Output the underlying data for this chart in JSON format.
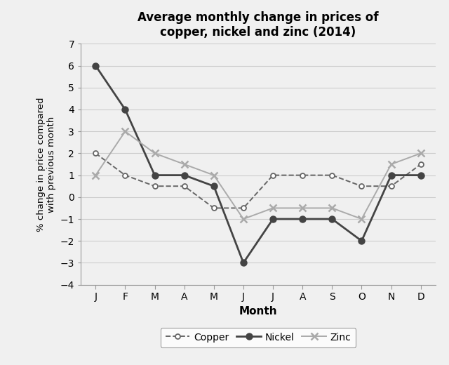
{
  "title": "Average monthly change in prices of\ncopper, nickel and zinc (2014)",
  "xlabel": "Month",
  "ylabel": "% change in price compared\nwith previous month",
  "months": [
    "J",
    "F",
    "M",
    "A",
    "M",
    "J",
    "J",
    "A",
    "S",
    "O",
    "N",
    "D"
  ],
  "copper": [
    2,
    1,
    0.5,
    0.5,
    -0.5,
    -0.5,
    1,
    1,
    1,
    0.5,
    0.5,
    1.5
  ],
  "nickel": [
    6,
    4,
    1,
    1,
    0.5,
    -3,
    -1,
    -1,
    -1,
    -2,
    1,
    1
  ],
  "zinc": [
    1,
    3,
    2,
    1.5,
    1,
    -1,
    -0.5,
    -0.5,
    -0.5,
    -1,
    1.5,
    2
  ],
  "ylim": [
    -4,
    7
  ],
  "yticks": [
    -4,
    -3,
    -2,
    -1,
    0,
    1,
    2,
    3,
    4,
    5,
    6,
    7
  ],
  "copper_color": "#666666",
  "nickel_color": "#444444",
  "zinc_color": "#aaaaaa",
  "background_color": "#f0f0f0",
  "plot_bg_color": "#f0f0f0",
  "grid_color": "#cccccc",
  "legend_labels": [
    "Copper",
    "Nickel",
    "Zinc"
  ]
}
